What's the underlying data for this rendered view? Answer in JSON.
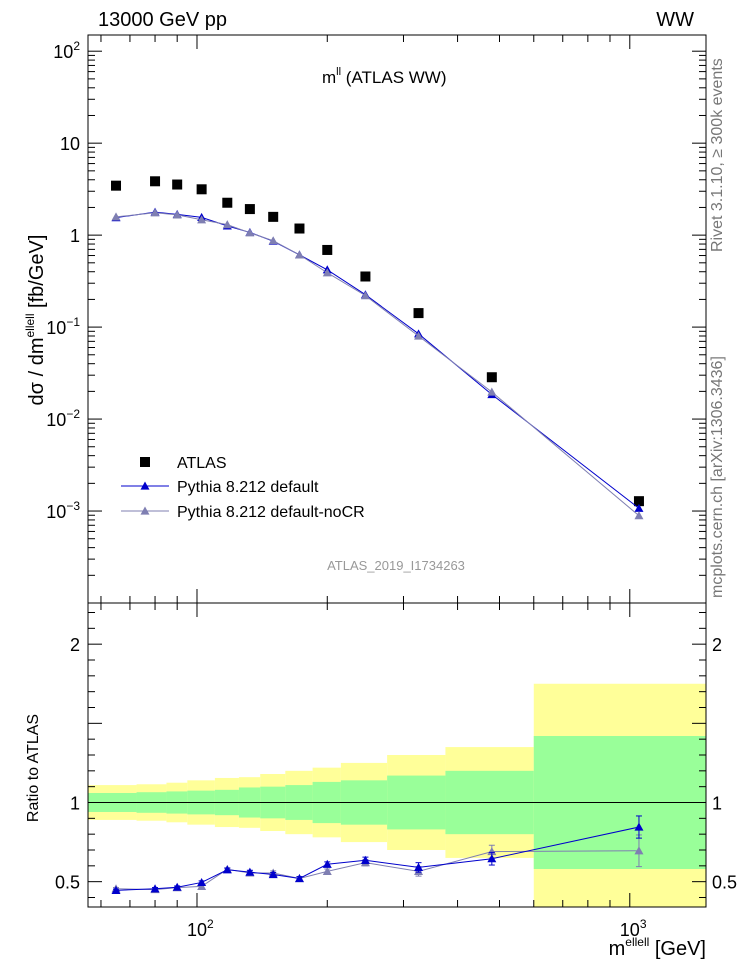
{
  "header": {
    "left": "13000 GeV pp",
    "right": "WW"
  },
  "side_labels": {
    "rivet": "Rivet 3.1.10, ≥ 300k events",
    "mcplots": "mcplots.cern.ch [arXiv:1306.3436]"
  },
  "chart_data": [
    {
      "type": "scatter",
      "panel": "main",
      "title": "m^ll (ATLAS WW)",
      "ylabel": "dσ / dm^ellell [fb/GeV]",
      "xscale": "log",
      "yscale": "log",
      "xlim": [
        56,
        1500
      ],
      "ylim": [
        0.0001,
        150
      ],
      "yticks": [
        "10^-3",
        "10^-2",
        "10^-1",
        "1",
        "10",
        "10^2"
      ],
      "analysis_id": "ATLAS_2019_I1734263",
      "legend_placement": "bottom-left",
      "series": [
        {
          "name": "ATLAS",
          "marker": "square",
          "color": "#000000",
          "x": [
            65,
            80,
            90,
            102.5,
            117.5,
            132.5,
            150,
            172.5,
            200,
            245,
            325,
            480,
            1050
          ],
          "y": [
            3.45,
            3.85,
            3.55,
            3.15,
            2.25,
            1.92,
            1.58,
            1.18,
            0.69,
            0.355,
            0.142,
            0.0285,
            0.00128
          ]
        },
        {
          "name": "Pythia 8.212 default",
          "marker": "triangle",
          "color": "#0000cc",
          "x": [
            65,
            80,
            90,
            102.5,
            117.5,
            132.5,
            150,
            172.5,
            200,
            245,
            325,
            480,
            1050
          ],
          "y": [
            1.55,
            1.78,
            1.68,
            1.56,
            1.26,
            1.07,
            0.86,
            0.61,
            0.42,
            0.225,
            0.0845,
            0.0185,
            0.00107
          ]
        },
        {
          "name": "Pythia 8.212 default-noCR",
          "marker": "triangle",
          "color": "#7f7fb2",
          "x": [
            65,
            80,
            90,
            102.5,
            117.5,
            132.5,
            150,
            172.5,
            200,
            245,
            325,
            480,
            1050
          ],
          "y": [
            1.58,
            1.75,
            1.66,
            1.47,
            1.3,
            1.06,
            0.87,
            0.61,
            0.39,
            0.22,
            0.08,
            0.0197,
            0.00089
          ]
        }
      ]
    },
    {
      "type": "line",
      "panel": "ratio",
      "ylabel": "Ratio to ATLAS",
      "xlabel": "m^ellell [GeV]",
      "xscale": "log",
      "xlim": [
        56,
        1500
      ],
      "ylim": [
        0.34,
        2.26
      ],
      "xticks": [
        "10^2",
        "10^3"
      ],
      "yticks": [
        "0.5",
        "1",
        "2"
      ],
      "bands": {
        "edges": [
          56,
          72.5,
          85,
          95,
          110,
          125,
          140,
          160,
          185,
          215,
          275,
          375,
          600,
          1500
        ],
        "inner": [
          0.06,
          0.065,
          0.07,
          0.075,
          0.08,
          0.095,
          0.1,
          0.11,
          0.13,
          0.14,
          0.17,
          0.2,
          0.42
        ],
        "outer": [
          0.11,
          0.115,
          0.125,
          0.14,
          0.155,
          0.16,
          0.18,
          0.2,
          0.22,
          0.25,
          0.3,
          0.35,
          0.75
        ],
        "inner_color": "#99ff99",
        "outer_color": "#ffff99"
      },
      "series": [
        {
          "name": "Pythia 8.212 default",
          "color": "#0000cc",
          "x": [
            65,
            80,
            90,
            102.5,
            117.5,
            132.5,
            150,
            172.5,
            200,
            245,
            325,
            480,
            1050
          ],
          "y": [
            0.445,
            0.455,
            0.465,
            0.495,
            0.575,
            0.56,
            0.545,
            0.52,
            0.61,
            0.635,
            0.59,
            0.645,
            0.845
          ],
          "err": [
            0.008,
            0.008,
            0.008,
            0.01,
            0.01,
            0.012,
            0.013,
            0.012,
            0.015,
            0.02,
            0.03,
            0.04,
            0.07
          ]
        },
        {
          "name": "Pythia 8.212 default-noCR",
          "color": "#7f7fb2",
          "x": [
            65,
            80,
            90,
            102.5,
            117.5,
            132.5,
            150,
            172.5,
            200,
            245,
            325,
            480,
            1050
          ],
          "y": [
            0.455,
            0.45,
            0.462,
            0.47,
            0.578,
            0.555,
            0.555,
            0.52,
            0.565,
            0.62,
            0.565,
            0.69,
            0.695
          ],
          "err": [
            0.008,
            0.008,
            0.008,
            0.01,
            0.01,
            0.012,
            0.013,
            0.012,
            0.015,
            0.02,
            0.03,
            0.04,
            0.1
          ]
        }
      ]
    }
  ]
}
